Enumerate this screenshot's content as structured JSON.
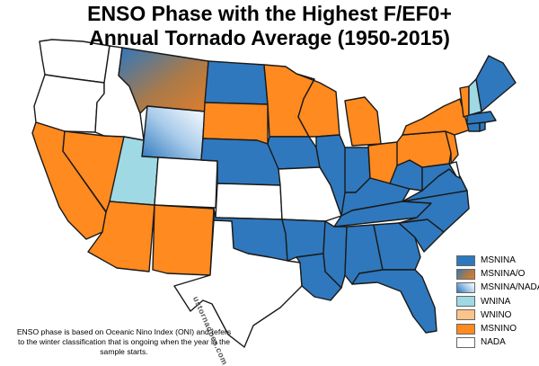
{
  "title": {
    "line1": "ENSO Phase with the Highest F/EF0+",
    "line2": "Annual Tornado Average (1950-2015)"
  },
  "legend": [
    {
      "key": "msnina",
      "label": "MSNINA",
      "color": "#2f78bd"
    },
    {
      "key": "msnina_o",
      "label": "MSNINA/O",
      "color": "#a97a4a"
    },
    {
      "key": "msnina_nada",
      "label": "MSNINA/NADA",
      "color": "#8ab6e0"
    },
    {
      "key": "wnina",
      "label": "WNINA",
      "color": "#9fd9e4"
    },
    {
      "key": "wnino",
      "label": "WNINO",
      "color": "#fbc48a"
    },
    {
      "key": "msnino",
      "label": "MSNINO",
      "color": "#ff8a1f"
    },
    {
      "key": "nada",
      "label": "NADA",
      "color": "#ffffff"
    }
  ],
  "watermark": "ustornadoes.com",
  "footnote": "ENSO phase is based on Oceanic Nino Index (ONI) and refers to the winter classification that is ongoing when the year in the sample starts.",
  "states": [
    {
      "name": "WA",
      "phase": "nada"
    },
    {
      "name": "OR",
      "phase": "nada"
    },
    {
      "name": "CA",
      "phase": "msnino"
    },
    {
      "name": "NV",
      "phase": "msnino"
    },
    {
      "name": "ID",
      "phase": "nada"
    },
    {
      "name": "MT",
      "phase": "msnina_o"
    },
    {
      "name": "WY",
      "phase": "msnina_nada"
    },
    {
      "name": "UT",
      "phase": "wnina"
    },
    {
      "name": "CO",
      "phase": "nada"
    },
    {
      "name": "AZ",
      "phase": "msnino"
    },
    {
      "name": "NM",
      "phase": "msnino"
    },
    {
      "name": "ND",
      "phase": "msnina"
    },
    {
      "name": "SD",
      "phase": "msnino"
    },
    {
      "name": "NE",
      "phase": "msnina"
    },
    {
      "name": "KS",
      "phase": "nada"
    },
    {
      "name": "OK",
      "phase": "msnina"
    },
    {
      "name": "TX",
      "phase": "nada"
    },
    {
      "name": "MN",
      "phase": "msnino"
    },
    {
      "name": "IA",
      "phase": "msnina"
    },
    {
      "name": "MO",
      "phase": "nada"
    },
    {
      "name": "AR",
      "phase": "msnina"
    },
    {
      "name": "LA",
      "phase": "msnina"
    },
    {
      "name": "WI",
      "phase": "msnino"
    },
    {
      "name": "IL",
      "phase": "msnina"
    },
    {
      "name": "MI",
      "phase": "msnino"
    },
    {
      "name": "IN",
      "phase": "msnina"
    },
    {
      "name": "OH",
      "phase": "msnino"
    },
    {
      "name": "KY",
      "phase": "msnina"
    },
    {
      "name": "TN",
      "phase": "msnina"
    },
    {
      "name": "MS",
      "phase": "msnina"
    },
    {
      "name": "AL",
      "phase": "msnina"
    },
    {
      "name": "GA",
      "phase": "msnina"
    },
    {
      "name": "FL",
      "phase": "msnina"
    },
    {
      "name": "SC",
      "phase": "msnina"
    },
    {
      "name": "NC",
      "phase": "msnina"
    },
    {
      "name": "VA",
      "phase": "msnina"
    },
    {
      "name": "WV",
      "phase": "msnina"
    },
    {
      "name": "MD",
      "phase": "msnina"
    },
    {
      "name": "DE",
      "phase": "nada"
    },
    {
      "name": "PA",
      "phase": "msnino"
    },
    {
      "name": "NJ",
      "phase": "msnino"
    },
    {
      "name": "NY",
      "phase": "msnino"
    },
    {
      "name": "CT",
      "phase": "msnina"
    },
    {
      "name": "RI",
      "phase": "msnina"
    },
    {
      "name": "MA",
      "phase": "msnina"
    },
    {
      "name": "VT",
      "phase": "msnino"
    },
    {
      "name": "NH",
      "phase": "wnina"
    },
    {
      "name": "ME",
      "phase": "msnina"
    }
  ]
}
